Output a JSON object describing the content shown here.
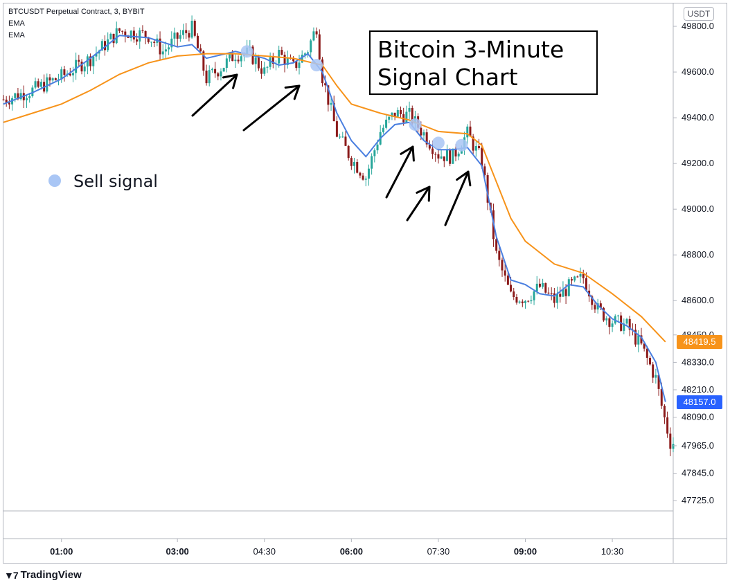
{
  "header": {
    "symbol_line": "BTCUSDT Perpetual Contract, 3, BYBIT",
    "indicator_1": "EMA",
    "indicator_2": "EMA",
    "currency": "USDT"
  },
  "annotation": {
    "title_line_1": "Bitcoin 3-Minute",
    "title_line_2": "Signal Chart",
    "legend_label": "Sell signal",
    "signal_color": "#a9c6f5",
    "arrow_color": "#000000"
  },
  "price_tags": {
    "slow_ema": "48419.5",
    "slow_ema_color": "#f7931a",
    "last_price": "48157.0",
    "last_price_color": "#2962ff"
  },
  "brand": {
    "name": "TradingView"
  },
  "chart_data": {
    "type": "candlestick",
    "title": "Bitcoin 3-Minute Signal Chart",
    "ylim": [
      47680,
      49900
    ],
    "xlim": [
      "00:00",
      "11:33"
    ],
    "y_tick_labels": [
      "49800.0",
      "49600.0",
      "49400.0",
      "49200.0",
      "49000.0",
      "48800.0",
      "48600.0",
      "48450.0",
      "48330.0",
      "48210.0",
      "48090.0",
      "47965.0",
      "47845.0",
      "47725.0"
    ],
    "y_tick_values": [
      49800,
      49600,
      49400,
      49200,
      49000,
      48800,
      48600,
      48450,
      48330,
      48210,
      48090,
      47965,
      47845,
      47725
    ],
    "x_tick_labels": [
      "01:00",
      "03:00",
      "04:30",
      "06:00",
      "07:30",
      "09:00",
      "10:30"
    ],
    "x_tick_values": [
      "01:00",
      "03:00",
      "04:30",
      "06:00",
      "07:30",
      "09:00",
      "10:30"
    ],
    "up_color": "#26a69a",
    "down_color": "#8b1a1a",
    "bar_minutes": 3,
    "close_path": [
      [
        "00:00",
        49480
      ],
      [
        "00:30",
        49520
      ],
      [
        "01:00",
        49580
      ],
      [
        "01:30",
        49660
      ],
      [
        "02:00",
        49780
      ],
      [
        "02:30",
        49760
      ],
      [
        "02:45",
        49690
      ],
      [
        "03:00",
        49750
      ],
      [
        "03:15",
        49790
      ],
      [
        "03:30",
        49570
      ],
      [
        "03:48",
        49630
      ],
      [
        "04:00",
        49680
      ],
      [
        "04:15",
        49680
      ],
      [
        "04:30",
        49600
      ],
      [
        "04:45",
        49680
      ],
      [
        "05:00",
        49620
      ],
      [
        "05:15",
        49700
      ],
      [
        "05:24",
        49800
      ],
      [
        "05:30",
        49580
      ],
      [
        "05:45",
        49330
      ],
      [
        "06:00",
        49220
      ],
      [
        "06:15",
        49140
      ],
      [
        "06:30",
        49340
      ],
      [
        "06:45",
        49420
      ],
      [
        "07:00",
        49410
      ],
      [
        "07:15",
        49330
      ],
      [
        "07:30",
        49240
      ],
      [
        "07:45",
        49230
      ],
      [
        "08:00",
        49330
      ],
      [
        "08:15",
        49210
      ],
      [
        "08:30",
        48800
      ],
      [
        "08:45",
        48620
      ],
      [
        "09:00",
        48610
      ],
      [
        "09:15",
        48660
      ],
      [
        "09:30",
        48600
      ],
      [
        "09:45",
        48660
      ],
      [
        "10:00",
        48700
      ],
      [
        "10:15",
        48560
      ],
      [
        "10:30",
        48510
      ],
      [
        "10:45",
        48490
      ],
      [
        "11:00",
        48400
      ],
      [
        "11:15",
        48260
      ],
      [
        "11:22",
        48120
      ],
      [
        "11:30",
        47980
      ]
    ],
    "series": [
      {
        "name": "EMA",
        "color": "#4a7fe0",
        "points": [
          [
            "00:00",
            49460
          ],
          [
            "00:30",
            49510
          ],
          [
            "01:00",
            49570
          ],
          [
            "01:30",
            49660
          ],
          [
            "02:00",
            49760
          ],
          [
            "02:30",
            49750
          ],
          [
            "03:00",
            49710
          ],
          [
            "03:15",
            49720
          ],
          [
            "03:30",
            49660
          ],
          [
            "04:00",
            49690
          ],
          [
            "04:30",
            49660
          ],
          [
            "04:45",
            49630
          ],
          [
            "05:00",
            49640
          ],
          [
            "05:15",
            49680
          ],
          [
            "05:30",
            49600
          ],
          [
            "05:45",
            49420
          ],
          [
            "06:00",
            49300
          ],
          [
            "06:15",
            49230
          ],
          [
            "06:30",
            49310
          ],
          [
            "06:45",
            49370
          ],
          [
            "07:00",
            49380
          ],
          [
            "07:15",
            49300
          ],
          [
            "07:30",
            49260
          ],
          [
            "07:45",
            49260
          ],
          [
            "08:00",
            49270
          ],
          [
            "08:15",
            49190
          ],
          [
            "08:30",
            48880
          ],
          [
            "08:45",
            48690
          ],
          [
            "09:00",
            48670
          ],
          [
            "09:15",
            48630
          ],
          [
            "09:30",
            48620
          ],
          [
            "09:45",
            48670
          ],
          [
            "10:00",
            48660
          ],
          [
            "10:15",
            48580
          ],
          [
            "10:30",
            48520
          ],
          [
            "10:45",
            48490
          ],
          [
            "11:00",
            48440
          ],
          [
            "11:15",
            48330
          ],
          [
            "11:25",
            48157
          ]
        ]
      },
      {
        "name": "EMA",
        "color": "#f7931a",
        "points": [
          [
            "00:00",
            49380
          ],
          [
            "00:30",
            49420
          ],
          [
            "01:00",
            49460
          ],
          [
            "01:30",
            49520
          ],
          [
            "02:00",
            49590
          ],
          [
            "02:30",
            49640
          ],
          [
            "03:00",
            49670
          ],
          [
            "03:30",
            49680
          ],
          [
            "04:00",
            49680
          ],
          [
            "04:30",
            49670
          ],
          [
            "05:00",
            49660
          ],
          [
            "05:30",
            49630
          ],
          [
            "05:45",
            49540
          ],
          [
            "06:00",
            49460
          ],
          [
            "06:30",
            49420
          ],
          [
            "07:00",
            49390
          ],
          [
            "07:30",
            49340
          ],
          [
            "08:00",
            49330
          ],
          [
            "08:15",
            49280
          ],
          [
            "08:30",
            49120
          ],
          [
            "08:45",
            48960
          ],
          [
            "09:00",
            48860
          ],
          [
            "09:30",
            48760
          ],
          [
            "10:00",
            48720
          ],
          [
            "10:30",
            48630
          ],
          [
            "11:00",
            48530
          ],
          [
            "11:25",
            48419.5
          ]
        ]
      }
    ],
    "sell_signals": [
      [
        "04:12",
        49690
      ],
      [
        "05:24",
        49630
      ],
      [
        "07:06",
        49370
      ],
      [
        "07:30",
        49290
      ],
      [
        "07:54",
        49280
      ]
    ]
  }
}
